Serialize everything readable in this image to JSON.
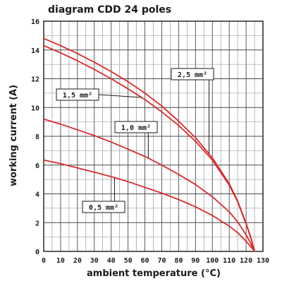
{
  "chart_data": {
    "type": "line",
    "title": "diagram CDD 24 poles",
    "xlabel": "ambient temperature (°C)",
    "ylabel": "working current (A)",
    "xlim": [
      0,
      130
    ],
    "ylim": [
      0,
      16
    ],
    "x_ticks": [
      "0",
      "10",
      "20",
      "30",
      "40",
      "50",
      "60",
      "70",
      "80",
      "90",
      "100",
      "110",
      "120",
      "130"
    ],
    "y_ticks": [
      "0",
      "2",
      "4",
      "6",
      "8",
      "10",
      "12",
      "14",
      "16"
    ],
    "grid": true,
    "series": [
      {
        "name": "2,5 mm²",
        "color": "#d92b2b",
        "x": [
          0,
          10,
          20,
          30,
          40,
          50,
          60,
          70,
          80,
          90,
          100,
          110,
          115,
          120,
          123,
          125
        ],
        "y": [
          14.8,
          14.3,
          13.75,
          13.15,
          12.5,
          11.8,
          11.0,
          10.1,
          9.05,
          7.9,
          6.5,
          4.7,
          3.5,
          1.95,
          0.9,
          0.0
        ]
      },
      {
        "name": "1,5 mm²",
        "color": "#d92b2b",
        "x": [
          0,
          10,
          20,
          30,
          40,
          50,
          60,
          70,
          80,
          90,
          100,
          110,
          115,
          120,
          123,
          125
        ],
        "y": [
          14.3,
          13.8,
          13.25,
          12.65,
          12.0,
          11.3,
          10.55,
          9.7,
          8.75,
          7.65,
          6.35,
          4.6,
          3.45,
          1.9,
          0.85,
          0.0
        ]
      },
      {
        "name": "1,0 mm²",
        "color": "#d92b2b",
        "x": [
          0,
          10,
          20,
          30,
          40,
          50,
          60,
          70,
          80,
          90,
          100,
          110,
          115,
          120,
          123,
          125
        ],
        "y": [
          9.2,
          8.85,
          8.45,
          8.05,
          7.6,
          7.1,
          6.6,
          6.0,
          5.35,
          4.65,
          3.8,
          2.75,
          2.05,
          1.15,
          0.5,
          0.0
        ]
      },
      {
        "name": "0,5 mm²",
        "color": "#d92b2b",
        "x": [
          0,
          10,
          20,
          30,
          40,
          50,
          60,
          70,
          80,
          90,
          100,
          110,
          115,
          120,
          123,
          125
        ],
        "y": [
          6.35,
          6.1,
          5.8,
          5.5,
          5.2,
          4.85,
          4.45,
          4.05,
          3.6,
          3.1,
          2.5,
          1.75,
          1.3,
          0.7,
          0.3,
          0.0
        ]
      }
    ],
    "labels": [
      {
        "text": "2,5 mm²",
        "series": 0,
        "anchor_x": 98
      },
      {
        "text": "1,5 mm²",
        "series": 1,
        "anchor_x": 58
      },
      {
        "text": "1,0 mm²",
        "series": 2,
        "anchor_x": 62
      },
      {
        "text": "0,5 mm²",
        "series": 3,
        "anchor_x": 42
      }
    ]
  }
}
